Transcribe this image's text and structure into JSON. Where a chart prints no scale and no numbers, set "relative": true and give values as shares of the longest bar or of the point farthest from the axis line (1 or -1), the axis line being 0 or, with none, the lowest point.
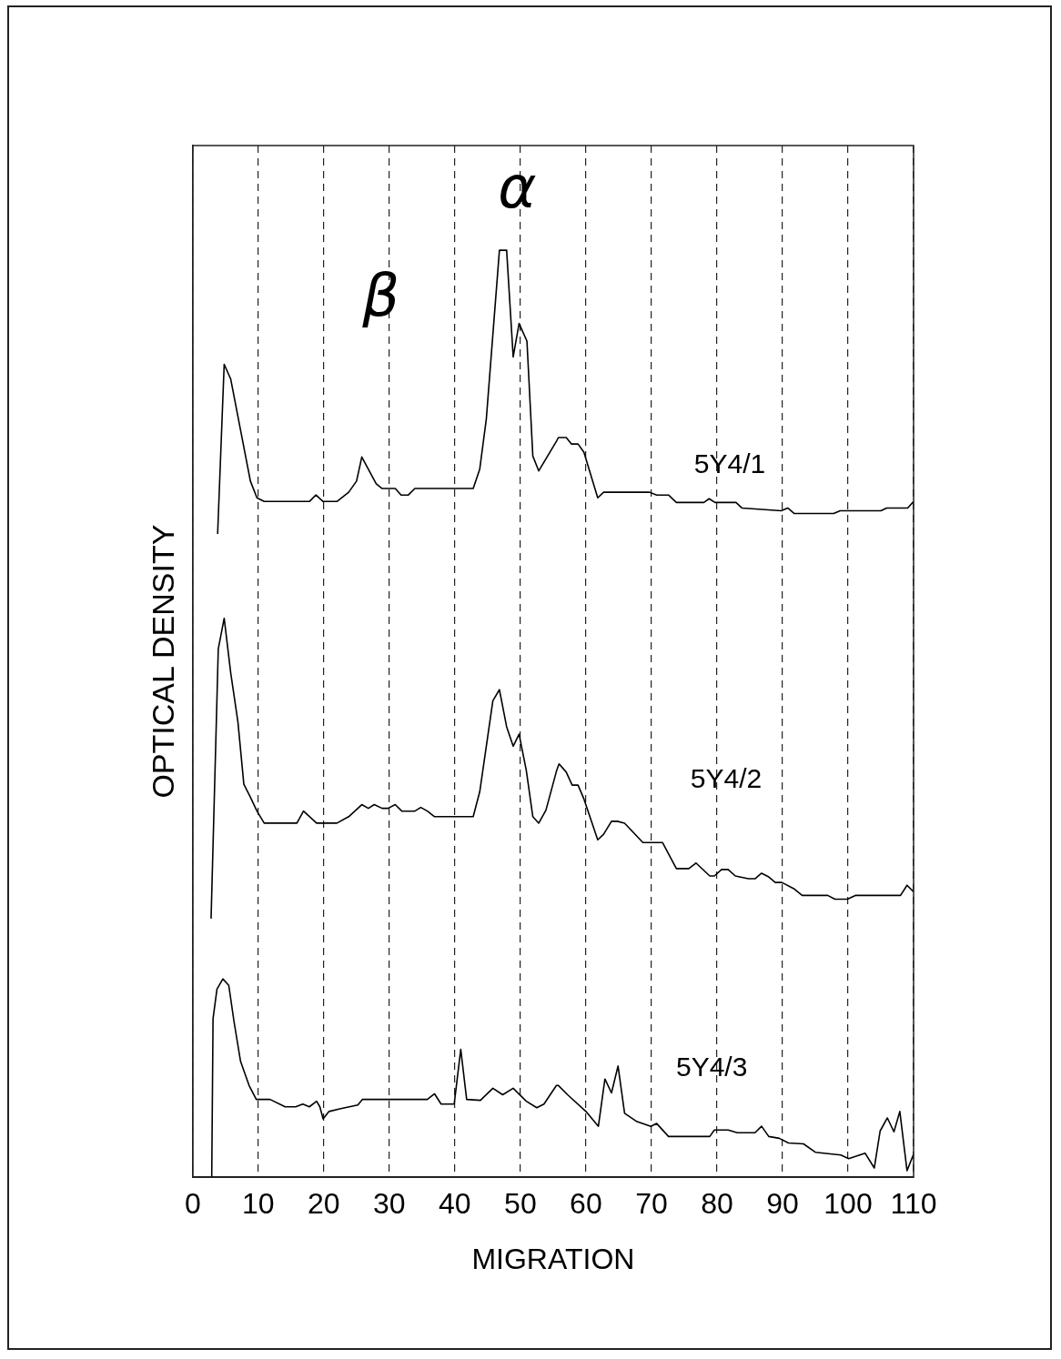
{
  "chart_data": {
    "type": "line",
    "xlabel": "MIGRATION",
    "ylabel": "OPTICAL DENSITY",
    "relative": true,
    "xlim": [
      0,
      110
    ],
    "xticks": [
      0,
      10,
      20,
      30,
      40,
      50,
      60,
      70,
      80,
      90,
      100,
      110
    ],
    "grid": "x",
    "legend": false,
    "marker": "none",
    "line_style": "solid",
    "annotations": [
      "α",
      "β"
    ],
    "series": [
      {
        "name": "5Y4/1",
        "color": "#000000",
        "x": [
          3.8,
          4.8,
          5.8,
          8.8,
          9.8,
          10.9,
          17.8,
          18.8,
          19.9,
          22.0,
          23.8,
          25.0,
          25.8,
          28.0,
          28.9,
          30.9,
          31.8,
          32.9,
          33.9,
          42.8,
          43.8,
          44.8,
          46.8,
          47.9,
          48.9,
          49.8,
          51.0,
          51.9,
          52.8,
          55.5,
          55.8,
          57.0,
          57.8,
          58.8,
          59.7,
          61.8,
          62.7,
          69.7,
          70.8,
          72.6,
          73.8,
          78.0,
          78.8,
          79.7,
          82.9,
          83.8,
          89.8,
          90.8,
          91.8,
          97.8,
          98.8,
          105.0,
          105.9,
          109.1,
          110
        ],
        "values": [
          0.694,
          0.877,
          0.861,
          0.751,
          0.733,
          0.729,
          0.729,
          0.736,
          0.729,
          0.729,
          0.739,
          0.751,
          0.777,
          0.748,
          0.743,
          0.743,
          0.736,
          0.736,
          0.743,
          0.743,
          0.764,
          0.818,
          1,
          1,
          0.885,
          0.921,
          0.902,
          0.778,
          0.762,
          0.794,
          0.798,
          0.798,
          0.791,
          0.791,
          0.782,
          0.733,
          0.739,
          0.739,
          0.736,
          0.736,
          0.728,
          0.728,
          0.732,
          0.728,
          0.728,
          0.722,
          0.719,
          0.722,
          0.716,
          0.716,
          0.719,
          0.719,
          0.722,
          0.722,
          0.729
        ]
      },
      {
        "name": "5Y4/2",
        "color": "#000000",
        "x": [
          2.8,
          3.9,
          4.8,
          5.8,
          6.9,
          7.8,
          8.8,
          9.8,
          10.9,
          15.9,
          16.9,
          18.9,
          22.0,
          23.8,
          25.8,
          26.8,
          27.7,
          28.9,
          29.8,
          30.9,
          31.9,
          33.9,
          34.8,
          35.8,
          36.9,
          42.8,
          43.8,
          45.8,
          46.8,
          47.9,
          48.9,
          49.8,
          50.9,
          51.9,
          52.8,
          53.9,
          55.5,
          55.9,
          57.0,
          57.9,
          58.8,
          59.7,
          61.8,
          62.7,
          63.9,
          64.8,
          65.9,
          68.7,
          71.7,
          73.8,
          75.7,
          76.8,
          78.9,
          79.6,
          80.7,
          81.7,
          82.8,
          84.8,
          85.8,
          86.8,
          87.9,
          88.9,
          89.9,
          91.8,
          93.0,
          96.9,
          98.0,
          99.9,
          101.1,
          108.0,
          109.0,
          110
        ],
        "values": [
          0.279,
          0.57,
          0.603,
          0.544,
          0.491,
          0.424,
          0.41,
          0.395,
          0.382,
          0.382,
          0.395,
          0.382,
          0.382,
          0.389,
          0.402,
          0.398,
          0.402,
          0.398,
          0.398,
          0.402,
          0.395,
          0.395,
          0.399,
          0.395,
          0.389,
          0.389,
          0.416,
          0.514,
          0.526,
          0.486,
          0.465,
          0.478,
          0.439,
          0.389,
          0.382,
          0.396,
          0.438,
          0.446,
          0.437,
          0.423,
          0.423,
          0.408,
          0.364,
          0.37,
          0.384,
          0.384,
          0.382,
          0.361,
          0.361,
          0.333,
          0.333,
          0.339,
          0.325,
          0.325,
          0.332,
          0.332,
          0.325,
          0.322,
          0.322,
          0.328,
          0.324,
          0.318,
          0.318,
          0.311,
          0.304,
          0.304,
          0.3,
          0.3,
          0.304,
          0.304,
          0.315,
          0.308
        ]
      },
      {
        "name": "5Y4/3",
        "color": "#000000",
        "x": [
          2.9,
          3.1,
          3.7,
          4.6,
          5.5,
          6.3,
          7.3,
          8.6,
          9.7,
          11.8,
          14.1,
          15.7,
          16.8,
          17.8,
          18.9,
          19.4,
          19.9,
          20.8,
          22.6,
          25.2,
          25.9,
          35.8,
          36.9,
          37.9,
          39.9,
          40.9,
          41.8,
          43.9,
          45.8,
          47.3,
          48.9,
          50.9,
          52.5,
          53.6,
          55.5,
          55.8,
          57.2,
          60.0,
          61.9,
          62.9,
          63.9,
          64.9,
          65.9,
          67.8,
          69.9,
          70.8,
          72.6,
          78.9,
          79.6,
          81.7,
          83.1,
          85.8,
          86.8,
          87.9,
          89.5,
          90.9,
          93.2,
          95.0,
          98.9,
          100.1,
          102.6,
          104.0,
          104.9,
          106.0,
          107.0,
          107.9,
          109.0,
          110
        ],
        "values": [
          0,
          0.171,
          0.203,
          0.214,
          0.207,
          0.168,
          0.125,
          0.099,
          0.084,
          0.084,
          0.076,
          0.076,
          0.079,
          0.076,
          0.082,
          0.076,
          0.063,
          0.071,
          0.074,
          0.078,
          0.084,
          0.084,
          0.09,
          0.079,
          0.079,
          0.138,
          0.084,
          0.083,
          0.096,
          0.089,
          0.096,
          0.082,
          0.075,
          0.079,
          0.099,
          0.099,
          0.089,
          0.071,
          0.055,
          0.106,
          0.091,
          0.12,
          0.069,
          0.06,
          0.055,
          0.058,
          0.044,
          0.044,
          0.051,
          0.051,
          0.048,
          0.048,
          0.055,
          0.044,
          0.042,
          0.037,
          0.036,
          0.027,
          0.024,
          0.02,
          0.026,
          0.01,
          0.05,
          0.064,
          0.049,
          0.071,
          0.007,
          0.025
        ]
      }
    ]
  }
}
